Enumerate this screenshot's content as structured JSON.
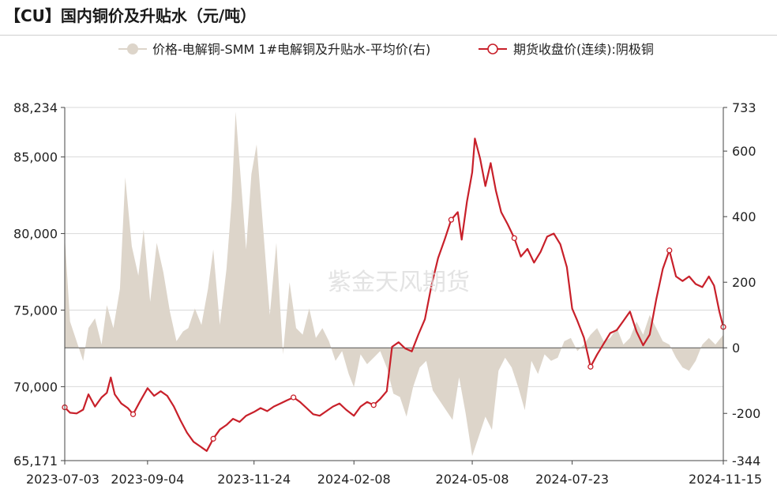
{
  "title": "【CU】国内铜价及升贴水（元/吨）",
  "watermark": "紫金天风期货",
  "colors": {
    "area": "#ddd5ca",
    "line": "#c8202a",
    "grid": "#d9d9d9",
    "axis": "#444444",
    "text": "#222222"
  },
  "chart_data": {
    "type": "line",
    "x_range": [
      "2023-07-03",
      "2024-11-15"
    ],
    "x_ticks": [
      "2023-07-03",
      "2023-09-04",
      "2023-11-24",
      "2024-02-08",
      "2024-05-08",
      "2024-07-23",
      "2024-11-15"
    ],
    "y_left": {
      "range": [
        65171,
        88234
      ],
      "ticks": [
        "65,171",
        "70,000",
        "75,000",
        "80,000",
        "85,000",
        "88,234"
      ]
    },
    "y_right": {
      "range": [
        -344,
        733
      ],
      "ticks": [
        "-344",
        "-200",
        "0",
        "200",
        "400",
        "600",
        "733"
      ]
    },
    "legend_position": "top",
    "series": [
      {
        "name": "价格-电解铜-SMM 1#电解铜及升贴水-平均价(右)",
        "axis": "right",
        "chart_type": "area",
        "points": [
          [
            "2023-07-03",
            340
          ],
          [
            "2023-07-07",
            80
          ],
          [
            "2023-07-12",
            20
          ],
          [
            "2023-07-17",
            -40
          ],
          [
            "2023-07-21",
            60
          ],
          [
            "2023-07-26",
            90
          ],
          [
            "2023-07-31",
            10
          ],
          [
            "2023-08-04",
            130
          ],
          [
            "2023-08-09",
            60
          ],
          [
            "2023-08-14",
            180
          ],
          [
            "2023-08-18",
            520
          ],
          [
            "2023-08-23",
            310
          ],
          [
            "2023-08-28",
            220
          ],
          [
            "2023-09-01",
            360
          ],
          [
            "2023-09-06",
            140
          ],
          [
            "2023-09-11",
            320
          ],
          [
            "2023-09-16",
            230
          ],
          [
            "2023-09-21",
            110
          ],
          [
            "2023-09-26",
            20
          ],
          [
            "2023-10-01",
            50
          ],
          [
            "2023-10-05",
            60
          ],
          [
            "2023-10-10",
            120
          ],
          [
            "2023-10-15",
            70
          ],
          [
            "2023-10-20",
            180
          ],
          [
            "2023-10-24",
            300
          ],
          [
            "2023-10-29",
            70
          ],
          [
            "2023-11-03",
            240
          ],
          [
            "2023-11-07",
            450
          ],
          [
            "2023-11-10",
            720
          ],
          [
            "2023-11-14",
            510
          ],
          [
            "2023-11-18",
            300
          ],
          [
            "2023-11-22",
            530
          ],
          [
            "2023-11-26",
            620
          ],
          [
            "2023-12-01",
            360
          ],
          [
            "2023-12-06",
            100
          ],
          [
            "2023-12-11",
            320
          ],
          [
            "2023-12-16",
            -20
          ],
          [
            "2023-12-21",
            200
          ],
          [
            "2023-12-26",
            60
          ],
          [
            "2023-12-31",
            40
          ],
          [
            "2024-01-05",
            120
          ],
          [
            "2024-01-10",
            30
          ],
          [
            "2024-01-15",
            60
          ],
          [
            "2024-01-20",
            20
          ],
          [
            "2024-01-25",
            -40
          ],
          [
            "2024-01-30",
            -10
          ],
          [
            "2024-02-04",
            -80
          ],
          [
            "2024-02-08",
            -120
          ],
          [
            "2024-02-13",
            -20
          ],
          [
            "2024-02-18",
            -50
          ],
          [
            "2024-02-23",
            -30
          ],
          [
            "2024-02-28",
            -10
          ],
          [
            "2024-03-04",
            -60
          ],
          [
            "2024-03-09",
            -140
          ],
          [
            "2024-03-14",
            -150
          ],
          [
            "2024-03-19",
            -210
          ],
          [
            "2024-03-24",
            -120
          ],
          [
            "2024-03-29",
            -60
          ],
          [
            "2024-04-03",
            -40
          ],
          [
            "2024-04-08",
            -130
          ],
          [
            "2024-04-13",
            -160
          ],
          [
            "2024-04-18",
            -190
          ],
          [
            "2024-04-23",
            -220
          ],
          [
            "2024-04-28",
            -90
          ],
          [
            "2024-05-03",
            -200
          ],
          [
            "2024-05-08",
            -330
          ],
          [
            "2024-05-13",
            -270
          ],
          [
            "2024-05-18",
            -210
          ],
          [
            "2024-05-23",
            -250
          ],
          [
            "2024-05-28",
            -70
          ],
          [
            "2024-06-02",
            -30
          ],
          [
            "2024-06-07",
            -60
          ],
          [
            "2024-06-12",
            -120
          ],
          [
            "2024-06-17",
            -190
          ],
          [
            "2024-06-22",
            -40
          ],
          [
            "2024-06-27",
            -80
          ],
          [
            "2024-07-02",
            -20
          ],
          [
            "2024-07-07",
            -40
          ],
          [
            "2024-07-12",
            -30
          ],
          [
            "2024-07-17",
            20
          ],
          [
            "2024-07-22",
            30
          ],
          [
            "2024-07-27",
            -10
          ],
          [
            "2024-08-01",
            10
          ],
          [
            "2024-08-06",
            40
          ],
          [
            "2024-08-11",
            60
          ],
          [
            "2024-08-16",
            20
          ],
          [
            "2024-08-21",
            30
          ],
          [
            "2024-08-26",
            60
          ],
          [
            "2024-08-31",
            10
          ],
          [
            "2024-09-05",
            30
          ],
          [
            "2024-09-10",
            80
          ],
          [
            "2024-09-15",
            40
          ],
          [
            "2024-09-20",
            100
          ],
          [
            "2024-09-25",
            60
          ],
          [
            "2024-09-30",
            20
          ],
          [
            "2024-10-05",
            10
          ],
          [
            "2024-10-10",
            -30
          ],
          [
            "2024-10-15",
            -60
          ],
          [
            "2024-10-20",
            -70
          ],
          [
            "2024-10-25",
            -40
          ],
          [
            "2024-10-30",
            10
          ],
          [
            "2024-11-04",
            30
          ],
          [
            "2024-11-09",
            10
          ],
          [
            "2024-11-15",
            40
          ]
        ]
      },
      {
        "name": "期货收盘价(连续):阴极铜",
        "axis": "left",
        "chart_type": "line",
        "points": [
          [
            "2023-07-03",
            68650
          ],
          [
            "2023-07-07",
            68300
          ],
          [
            "2023-07-12",
            68250
          ],
          [
            "2023-07-17",
            68500
          ],
          [
            "2023-07-21",
            69500
          ],
          [
            "2023-07-26",
            68700
          ],
          [
            "2023-07-31",
            69300
          ],
          [
            "2023-08-04",
            69600
          ],
          [
            "2023-08-07",
            70600
          ],
          [
            "2023-08-10",
            69500
          ],
          [
            "2023-08-15",
            68900
          ],
          [
            "2023-08-20",
            68600
          ],
          [
            "2023-08-24",
            68200
          ],
          [
            "2023-08-29",
            69000
          ],
          [
            "2023-09-04",
            69900
          ],
          [
            "2023-09-09",
            69400
          ],
          [
            "2023-09-14",
            69700
          ],
          [
            "2023-09-19",
            69400
          ],
          [
            "2023-09-24",
            68700
          ],
          [
            "2023-09-29",
            67800
          ],
          [
            "2023-10-04",
            67000
          ],
          [
            "2023-10-09",
            66400
          ],
          [
            "2023-10-14",
            66100
          ],
          [
            "2023-10-19",
            65800
          ],
          [
            "2023-10-24",
            66600
          ],
          [
            "2023-10-29",
            67200
          ],
          [
            "2023-11-03",
            67500
          ],
          [
            "2023-11-08",
            67900
          ],
          [
            "2023-11-13",
            67700
          ],
          [
            "2023-11-18",
            68100
          ],
          [
            "2023-11-24",
            68350
          ],
          [
            "2023-11-29",
            68600
          ],
          [
            "2023-12-04",
            68400
          ],
          [
            "2023-12-09",
            68700
          ],
          [
            "2023-12-14",
            68900
          ],
          [
            "2023-12-19",
            69100
          ],
          [
            "2023-12-24",
            69300
          ],
          [
            "2023-12-29",
            69000
          ],
          [
            "2024-01-03",
            68600
          ],
          [
            "2024-01-08",
            68200
          ],
          [
            "2024-01-13",
            68100
          ],
          [
            "2024-01-18",
            68400
          ],
          [
            "2024-01-23",
            68700
          ],
          [
            "2024-01-28",
            68900
          ],
          [
            "2024-02-02",
            68500
          ],
          [
            "2024-02-08",
            68100
          ],
          [
            "2024-02-13",
            68700
          ],
          [
            "2024-02-18",
            69000
          ],
          [
            "2024-02-23",
            68800
          ],
          [
            "2024-02-28",
            69200
          ],
          [
            "2024-03-04",
            69700
          ],
          [
            "2024-03-08",
            72600
          ],
          [
            "2024-03-13",
            72900
          ],
          [
            "2024-03-18",
            72500
          ],
          [
            "2024-03-23",
            72300
          ],
          [
            "2024-03-28",
            73400
          ],
          [
            "2024-04-02",
            74400
          ],
          [
            "2024-04-07",
            76600
          ],
          [
            "2024-04-12",
            78400
          ],
          [
            "2024-04-17",
            79600
          ],
          [
            "2024-04-22",
            80900
          ],
          [
            "2024-04-27",
            81400
          ],
          [
            "2024-04-30",
            79600
          ],
          [
            "2024-05-04",
            82100
          ],
          [
            "2024-05-08",
            84000
          ],
          [
            "2024-05-10",
            86200
          ],
          [
            "2024-05-14",
            84900
          ],
          [
            "2024-05-18",
            83100
          ],
          [
            "2024-05-22",
            84600
          ],
          [
            "2024-05-26",
            82800
          ],
          [
            "2024-05-30",
            81400
          ],
          [
            "2024-06-04",
            80600
          ],
          [
            "2024-06-09",
            79700
          ],
          [
            "2024-06-14",
            78500
          ],
          [
            "2024-06-19",
            79000
          ],
          [
            "2024-06-24",
            78100
          ],
          [
            "2024-06-29",
            78800
          ],
          [
            "2024-07-04",
            79800
          ],
          [
            "2024-07-09",
            80000
          ],
          [
            "2024-07-14",
            79300
          ],
          [
            "2024-07-19",
            77800
          ],
          [
            "2024-07-23",
            75100
          ],
          [
            "2024-07-27",
            74300
          ],
          [
            "2024-08-01",
            73200
          ],
          [
            "2024-08-06",
            71300
          ],
          [
            "2024-08-11",
            72100
          ],
          [
            "2024-08-16",
            72800
          ],
          [
            "2024-08-21",
            73500
          ],
          [
            "2024-08-26",
            73700
          ],
          [
            "2024-08-31",
            74300
          ],
          [
            "2024-09-05",
            74900
          ],
          [
            "2024-09-10",
            73600
          ],
          [
            "2024-09-15",
            72700
          ],
          [
            "2024-09-20",
            73400
          ],
          [
            "2024-09-25",
            75700
          ],
          [
            "2024-09-30",
            77700
          ],
          [
            "2024-10-05",
            78900
          ],
          [
            "2024-10-10",
            77200
          ],
          [
            "2024-10-15",
            76900
          ],
          [
            "2024-10-20",
            77200
          ],
          [
            "2024-10-25",
            76700
          ],
          [
            "2024-10-30",
            76500
          ],
          [
            "2024-11-04",
            77200
          ],
          [
            "2024-11-08",
            76600
          ],
          [
            "2024-11-12",
            74900
          ],
          [
            "2024-11-15",
            73900
          ]
        ]
      }
    ]
  }
}
